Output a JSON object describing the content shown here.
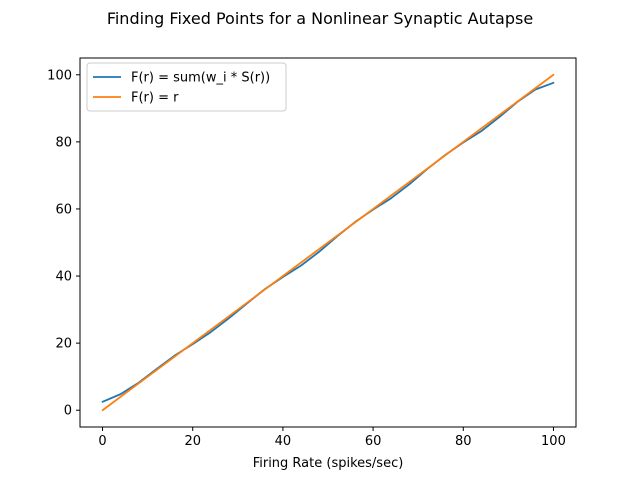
{
  "chart_data": {
    "type": "line",
    "title": "Finding Fixed Points for a Nonlinear Synaptic Autapse",
    "xlabel": "Firing Rate (spikes/sec)",
    "ylabel": "",
    "xlim": [
      -5,
      105
    ],
    "ylim": [
      -5,
      105
    ],
    "xticks": [
      0,
      20,
      40,
      60,
      80,
      100
    ],
    "yticks": [
      0,
      20,
      40,
      60,
      80,
      100
    ],
    "grid": false,
    "legend_position": "top-left",
    "series": [
      {
        "name": "F(r) = sum(w_i * S(r))",
        "color": "#1f77b4",
        "x": [
          0,
          4,
          8,
          12,
          16,
          20,
          24,
          28,
          32,
          36,
          40,
          44,
          48,
          52,
          56,
          60,
          64,
          68,
          72,
          76,
          80,
          84,
          88,
          92,
          96,
          100
        ],
        "y": [
          2.5,
          4.8,
          8.2,
          12.3,
          16.3,
          19.7,
          23.3,
          27.4,
          31.8,
          36.1,
          39.7,
          43.1,
          47.2,
          51.8,
          56.1,
          59.8,
          63.2,
          67.3,
          71.9,
          76.1,
          79.8,
          83.2,
          87.4,
          91.9,
          95.6,
          97.6
        ]
      },
      {
        "name": "F(r) = r",
        "color": "#ff7f0e",
        "x": [
          0,
          100
        ],
        "y": [
          0,
          100
        ]
      }
    ]
  }
}
